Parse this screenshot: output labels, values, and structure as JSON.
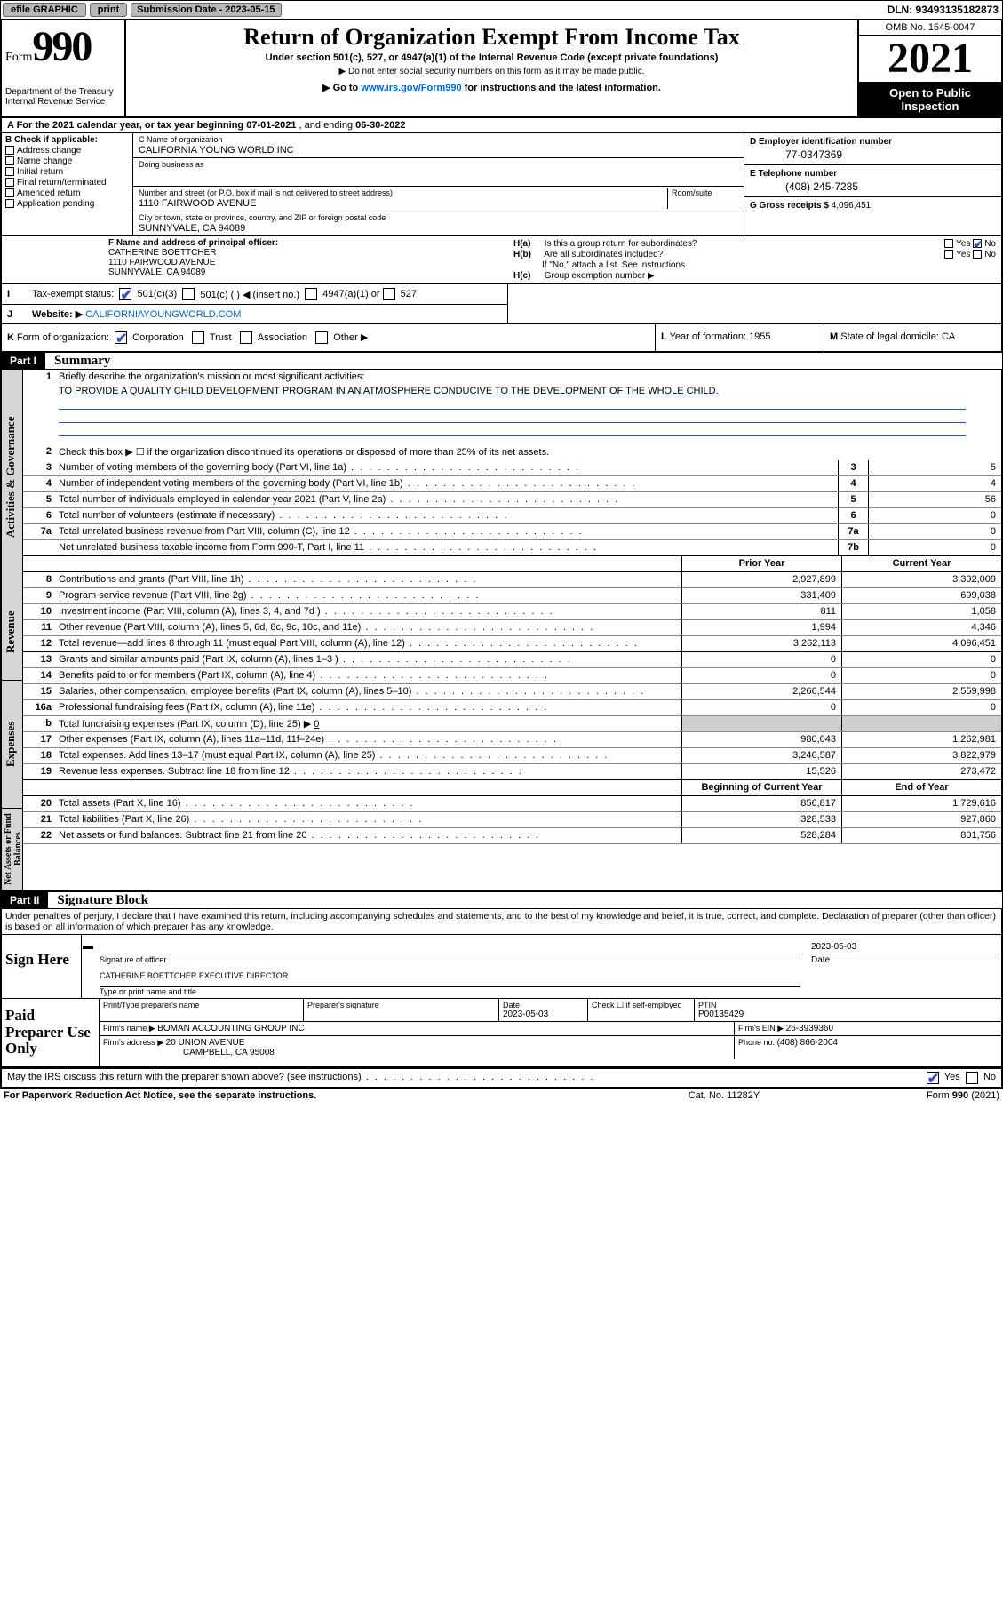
{
  "colors": {
    "link": "#0066cc",
    "check": "#2e4ec1",
    "grey_bg": "#cfcfcf",
    "vstrip_bg": "#d6d6d6",
    "btn_bg": "#b8b8b8"
  },
  "topbar": {
    "efile": "efile GRAPHIC",
    "print": "print",
    "sub_label": "Submission Date -",
    "sub_date": "2023-05-15",
    "dln": "DLN: 93493135182873"
  },
  "header": {
    "form_word": "Form",
    "form_number": "990",
    "title": "Return of Organization Exempt From Income Tax",
    "subtitle1": "Under section 501(c), 527, or 4947(a)(1) of the Internal Revenue Code (except private foundations)",
    "subtitle2": "▶ Do not enter social security numbers on this form as it may be made public.",
    "subtitle3_pre": "▶ Go to ",
    "subtitle3_link": "www.irs.gov/Form990",
    "subtitle3_post": " for instructions and the latest information.",
    "dept": "Department of the Treasury",
    "irs": "Internal Revenue Service",
    "omb": "OMB No. 1545-0047",
    "year": "2021",
    "open_public": "Open to Public Inspection"
  },
  "line_a": {
    "prefix": "A For the 2021 calendar year, or tax year beginning ",
    "begin": "07-01-2021",
    "mid": " , and ending ",
    "end": "06-30-2022"
  },
  "box_b": {
    "header": "B Check if applicable:",
    "items": [
      "Address change",
      "Name change",
      "Initial return",
      "Final return/terminated",
      "Amended return",
      "Application pending"
    ]
  },
  "box_c": {
    "name_lbl": "C Name of organization",
    "name": "CALIFORNIA YOUNG WORLD INC",
    "dba_lbl": "Doing business as",
    "dba": "",
    "street_lbl": "Number and street (or P.O. box if mail is not delivered to street address)",
    "room_lbl": "Room/suite",
    "street": "1110 FAIRWOOD AVENUE",
    "city_lbl": "City or town, state or province, country, and ZIP or foreign postal code",
    "city": "SUNNYVALE, CA  94089"
  },
  "box_d": {
    "lbl": "D Employer identification number",
    "val": "77-0347369"
  },
  "box_e": {
    "lbl": "E Telephone number",
    "val": "(408) 245-7285"
  },
  "box_g": {
    "lbl": "G Gross receipts $",
    "val": "4,096,451"
  },
  "box_f": {
    "lbl": "F Name and address of principal officer:",
    "name": "CATHERINE BOETTCHER",
    "street": "1110 FAIRWOOD AVENUE",
    "city": "SUNNYVALE, CA  94089"
  },
  "box_h": {
    "a_lbl": "H(a)",
    "a_text": "Is this a group return for subordinates?",
    "a_yes": "Yes",
    "a_no": "No",
    "a_checked": "no",
    "b_lbl": "H(b)",
    "b_text": "Are all subordinates included?",
    "b_yes": "Yes",
    "b_no": "No",
    "b_note": "If \"No,\" attach a list. See instructions.",
    "c_lbl": "H(c)",
    "c_text": "Group exemption number ▶"
  },
  "row_i": {
    "lead": "I",
    "label": "Tax-exempt status:",
    "opt1": "501(c)(3)",
    "opt2": "501(c) (   ) ◀ (insert no.)",
    "opt3": "4947(a)(1) or",
    "opt4": "527",
    "checked": "opt1"
  },
  "row_j": {
    "lead": "J",
    "label": "Website: ▶",
    "url": "CALIFORNIAYOUNGWORLD.COM"
  },
  "row_k": {
    "lead": "K",
    "label": "Form of organization:",
    "opts": [
      "Corporation",
      "Trust",
      "Association",
      "Other ▶"
    ],
    "checked": 0
  },
  "row_l": {
    "lead": "L",
    "label": "Year of formation:",
    "val": "1955"
  },
  "row_m": {
    "lead": "M",
    "label": "State of legal domicile:",
    "val": "CA"
  },
  "part1": {
    "badge": "Part I",
    "title": "Summary"
  },
  "vlabels": {
    "gov": "Activities & Governance",
    "rev": "Revenue",
    "exp": "Expenses",
    "net": "Net Assets or Fund Balances"
  },
  "summary": {
    "l1_label": "Briefly describe the organization's mission or most significant activities:",
    "l1_text": "TO PROVIDE A QUALITY CHILD DEVELOPMENT PROGRAM IN AN ATMOSPHERE CONDUCIVE TO THE DEVELOPMENT OF THE WHOLE CHILD.",
    "l2": "Check this box ▶ ☐ if the organization discontinued its operations or disposed of more than 25% of its net assets.",
    "rows_single": [
      {
        "n": "3",
        "d": "Number of voting members of the governing body (Part VI, line 1a)",
        "box": "3",
        "v": "5"
      },
      {
        "n": "4",
        "d": "Number of independent voting members of the governing body (Part VI, line 1b)",
        "box": "4",
        "v": "4"
      },
      {
        "n": "5",
        "d": "Total number of individuals employed in calendar year 2021 (Part V, line 2a)",
        "box": "5",
        "v": "56"
      },
      {
        "n": "6",
        "d": "Total number of volunteers (estimate if necessary)",
        "box": "6",
        "v": "0"
      },
      {
        "n": "7a",
        "d": "Total unrelated business revenue from Part VIII, column (C), line 12",
        "box": "7a",
        "v": "0"
      },
      {
        "n": "",
        "d": "Net unrelated business taxable income from Form 990-T, Part I, line 11",
        "box": "7b",
        "v": "0"
      }
    ],
    "col_hdr_prior": "Prior Year",
    "col_hdr_current": "Current Year",
    "revenue": [
      {
        "n": "8",
        "d": "Contributions and grants (Part VIII, line 1h)",
        "p": "2,927,899",
        "c": "3,392,009"
      },
      {
        "n": "9",
        "d": "Program service revenue (Part VIII, line 2g)",
        "p": "331,409",
        "c": "699,038"
      },
      {
        "n": "10",
        "d": "Investment income (Part VIII, column (A), lines 3, 4, and 7d )",
        "p": "811",
        "c": "1,058"
      },
      {
        "n": "11",
        "d": "Other revenue (Part VIII, column (A), lines 5, 6d, 8c, 9c, 10c, and 11e)",
        "p": "1,994",
        "c": "4,346"
      },
      {
        "n": "12",
        "d": "Total revenue—add lines 8 through 11 (must equal Part VIII, column (A), line 12)",
        "p": "3,262,113",
        "c": "4,096,451"
      }
    ],
    "expenses": [
      {
        "n": "13",
        "d": "Grants and similar amounts paid (Part IX, column (A), lines 1–3 )",
        "p": "0",
        "c": "0"
      },
      {
        "n": "14",
        "d": "Benefits paid to or for members (Part IX, column (A), line 4)",
        "p": "0",
        "c": "0"
      },
      {
        "n": "15",
        "d": "Salaries, other compensation, employee benefits (Part IX, column (A), lines 5–10)",
        "p": "2,266,544",
        "c": "2,559,998"
      },
      {
        "n": "16a",
        "d": "Professional fundraising fees (Part IX, column (A), line 11e)",
        "p": "0",
        "c": "0"
      }
    ],
    "l16b_pre": "Total fundraising expenses (Part IX, column (D), line 25) ▶",
    "l16b_val": "0",
    "expenses2": [
      {
        "n": "17",
        "d": "Other expenses (Part IX, column (A), lines 11a–11d, 11f–24e)",
        "p": "980,043",
        "c": "1,262,981"
      },
      {
        "n": "18",
        "d": "Total expenses. Add lines 13–17 (must equal Part IX, column (A), line 25)",
        "p": "3,246,587",
        "c": "3,822,979"
      },
      {
        "n": "19",
        "d": "Revenue less expenses. Subtract line 18 from line 12",
        "p": "15,526",
        "c": "273,472"
      }
    ],
    "net_hdr_begin": "Beginning of Current Year",
    "net_hdr_end": "End of Year",
    "netassets": [
      {
        "n": "20",
        "d": "Total assets (Part X, line 16)",
        "p": "856,817",
        "c": "1,729,616"
      },
      {
        "n": "21",
        "d": "Total liabilities (Part X, line 26)",
        "p": "328,533",
        "c": "927,860"
      },
      {
        "n": "22",
        "d": "Net assets or fund balances. Subtract line 21 from line 20",
        "p": "528,284",
        "c": "801,756"
      }
    ]
  },
  "part2": {
    "badge": "Part II",
    "title": "Signature Block"
  },
  "declaration": "Under penalties of perjury, I declare that I have examined this return, including accompanying schedules and statements, and to the best of my knowledge and belief, it is true, correct, and complete. Declaration of preparer (other than officer) is based on all information of which preparer has any knowledge.",
  "sign": {
    "left": "Sign Here",
    "sig_lbl": "Signature of officer",
    "date_lbl": "Date",
    "date_val": "2023-05-03",
    "name": "CATHERINE BOETTCHER  EXECUTIVE DIRECTOR",
    "name_lbl": "Type or print name and title"
  },
  "preparer": {
    "left": "Paid Preparer Use Only",
    "h_name": "Print/Type preparer's name",
    "h_sig": "Preparer's signature",
    "h_date_lbl": "Date",
    "h_date": "2023-05-03",
    "h_check_lbl": "Check ☐ if self-employed",
    "h_ptin_lbl": "PTIN",
    "h_ptin": "P00135429",
    "firm_name_lbl": "Firm's name    ▶",
    "firm_name": "BOMAN ACCOUNTING GROUP INC",
    "firm_ein_lbl": "Firm's EIN ▶",
    "firm_ein": "26-3939360",
    "firm_addr_lbl": "Firm's address ▶",
    "firm_addr1": "20 UNION AVENUE",
    "firm_addr2": "CAMPBELL, CA  95008",
    "phone_lbl": "Phone no.",
    "phone": "(408) 866-2004"
  },
  "may_irs": {
    "text": "May the IRS discuss this return with the preparer shown above? (see instructions)",
    "yes": "Yes",
    "no": "No",
    "checked": "yes"
  },
  "footer": {
    "left": "For Paperwork Reduction Act Notice, see the separate instructions.",
    "mid": "Cat. No. 11282Y",
    "right_pre": "Form ",
    "right_form": "990",
    "right_post": " (2021)"
  }
}
